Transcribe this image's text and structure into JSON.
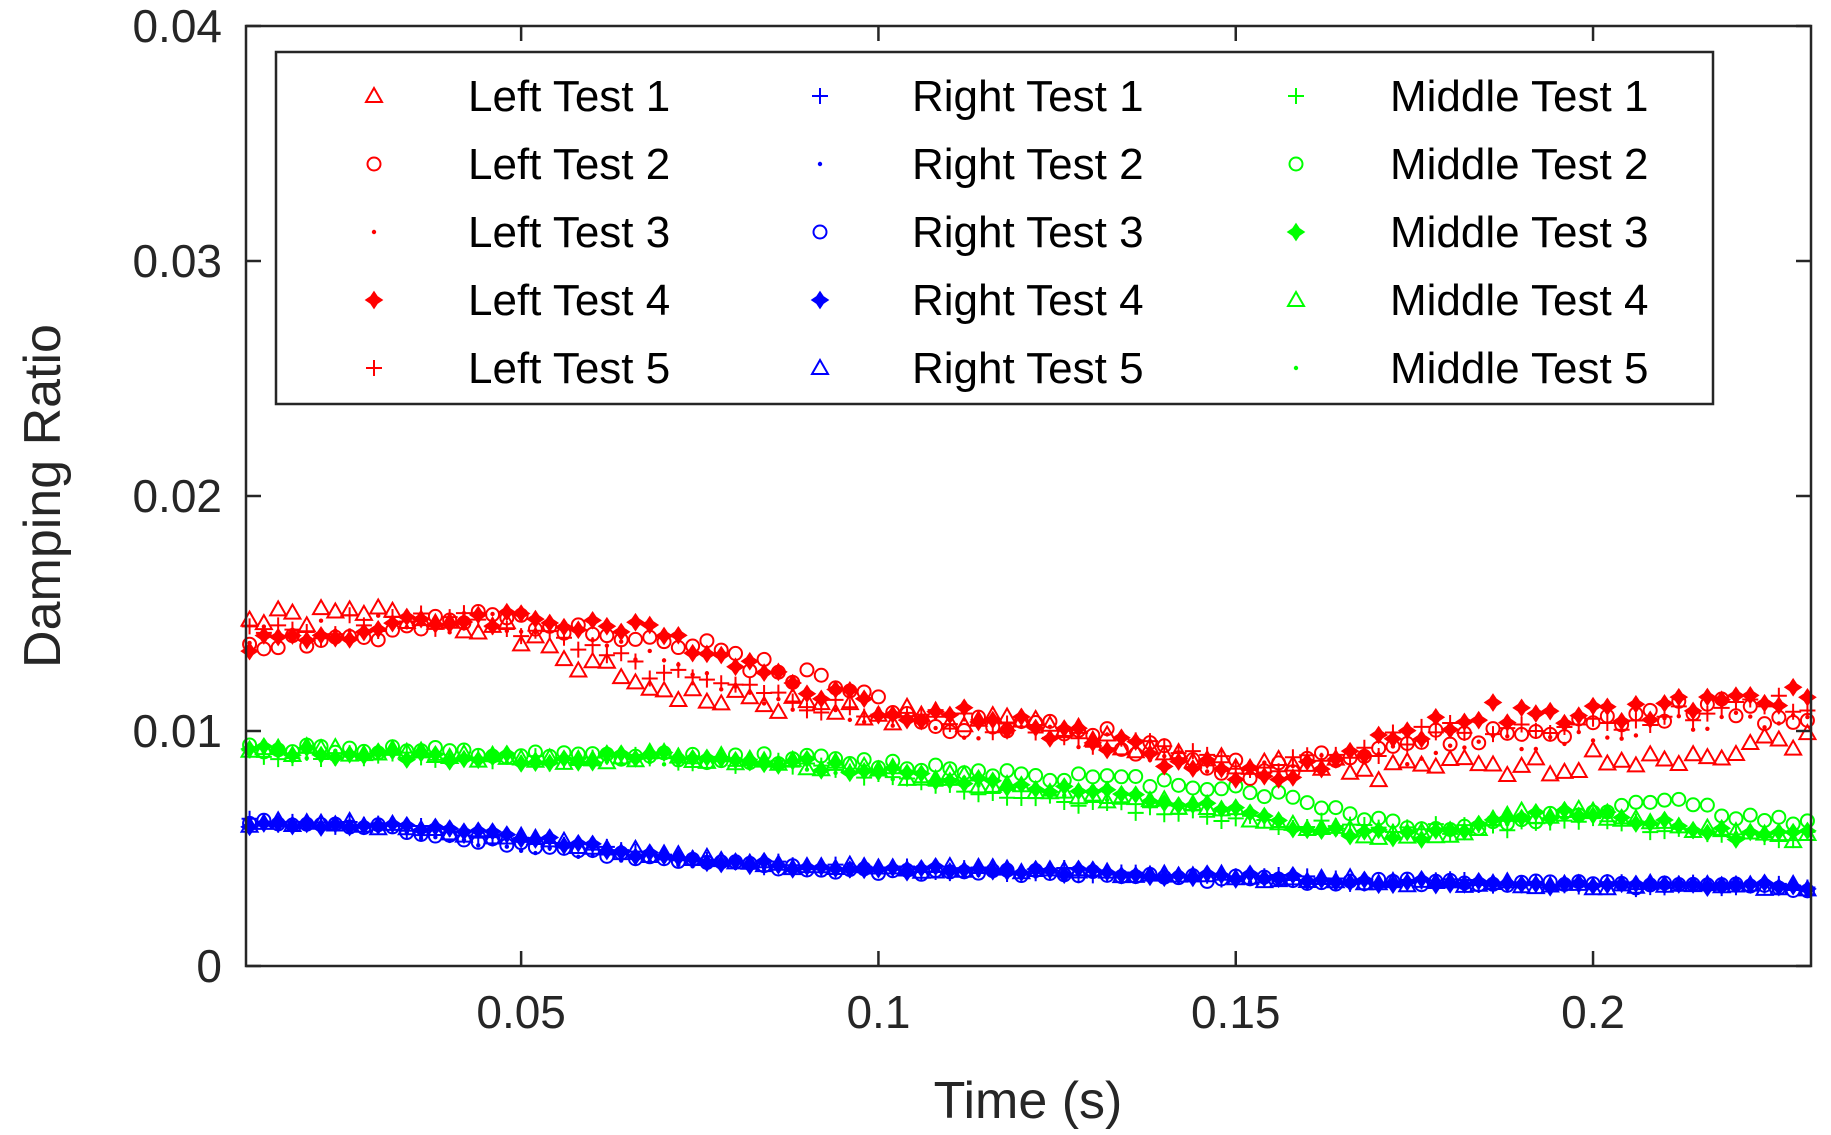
{
  "chart_data": {
    "type": "scatter",
    "title": "",
    "xlabel": "Time (s)",
    "ylabel": "Damping Ratio",
    "xlim": [
      0.0115,
      0.2305
    ],
    "ylim": [
      0,
      0.04
    ],
    "xticks": [
      0.05,
      0.1,
      0.15,
      0.2
    ],
    "xtick_labels": [
      "0.05",
      "0.1",
      "0.15",
      "0.2"
    ],
    "yticks": [
      0,
      0.01,
      0.02,
      0.03,
      0.04
    ],
    "ytick_labels": [
      "0",
      "0.01",
      "0.02",
      "0.03",
      "0.04"
    ],
    "grid": false,
    "legend_position": "top",
    "x_start": 0.012,
    "x_end": 0.23,
    "x_step": 0.002,
    "series": [
      {
        "name": "Left Test 1",
        "color": "#ff0000",
        "marker": "triangle",
        "shape": [
          [
            0.012,
            0.0147
          ],
          [
            0.03,
            0.015
          ],
          [
            0.045,
            0.0146
          ],
          [
            0.055,
            0.0132
          ],
          [
            0.065,
            0.0122
          ],
          [
            0.075,
            0.0114
          ],
          [
            0.085,
            0.0112
          ],
          [
            0.1,
            0.0108
          ],
          [
            0.12,
            0.0103
          ],
          [
            0.14,
            0.0092
          ],
          [
            0.15,
            0.0083
          ],
          [
            0.16,
            0.0086
          ],
          [
            0.17,
            0.0082
          ],
          [
            0.18,
            0.0085
          ],
          [
            0.19,
            0.0083
          ],
          [
            0.2,
            0.0088
          ],
          [
            0.21,
            0.009
          ],
          [
            0.22,
            0.0092
          ],
          [
            0.23,
            0.0098
          ]
        ],
        "seed": 1
      },
      {
        "name": "Left Test 2",
        "color": "#ff0000",
        "marker": "circle",
        "shape": [
          [
            0.012,
            0.0138
          ],
          [
            0.03,
            0.014
          ],
          [
            0.045,
            0.0148
          ],
          [
            0.06,
            0.0145
          ],
          [
            0.075,
            0.0135
          ],
          [
            0.085,
            0.0128
          ],
          [
            0.095,
            0.0118
          ],
          [
            0.11,
            0.0104
          ],
          [
            0.13,
            0.01
          ],
          [
            0.145,
            0.0085
          ],
          [
            0.155,
            0.0084
          ],
          [
            0.165,
            0.0092
          ],
          [
            0.175,
            0.0095
          ],
          [
            0.185,
            0.0098
          ],
          [
            0.195,
            0.01
          ],
          [
            0.21,
            0.0108
          ],
          [
            0.22,
            0.011
          ],
          [
            0.23,
            0.0104
          ]
        ],
        "seed": 2
      },
      {
        "name": "Left Test 3",
        "color": "#ff0000",
        "marker": "point",
        "shape": [
          [
            0.012,
            0.014
          ],
          [
            0.03,
            0.0145
          ],
          [
            0.045,
            0.0147
          ],
          [
            0.06,
            0.014
          ],
          [
            0.075,
            0.0125
          ],
          [
            0.09,
            0.011
          ],
          [
            0.11,
            0.0102
          ],
          [
            0.13,
            0.0096
          ],
          [
            0.145,
            0.0086
          ],
          [
            0.155,
            0.0082
          ],
          [
            0.165,
            0.0088
          ],
          [
            0.175,
            0.009
          ],
          [
            0.185,
            0.0094
          ],
          [
            0.2,
            0.0098
          ],
          [
            0.21,
            0.0102
          ],
          [
            0.22,
            0.0104
          ],
          [
            0.23,
            0.0106
          ]
        ],
        "seed": 3
      },
      {
        "name": "Left Test 4",
        "color": "#ff0000",
        "marker": "star",
        "shape": [
          [
            0.012,
            0.0138
          ],
          [
            0.03,
            0.0143
          ],
          [
            0.045,
            0.0149
          ],
          [
            0.06,
            0.0146
          ],
          [
            0.075,
            0.0137
          ],
          [
            0.085,
            0.0125
          ],
          [
            0.1,
            0.011
          ],
          [
            0.115,
            0.0105
          ],
          [
            0.13,
            0.0098
          ],
          [
            0.145,
            0.0084
          ],
          [
            0.155,
            0.008
          ],
          [
            0.165,
            0.009
          ],
          [
            0.175,
            0.01
          ],
          [
            0.185,
            0.0108
          ],
          [
            0.195,
            0.0105
          ],
          [
            0.205,
            0.0108
          ],
          [
            0.215,
            0.0112
          ],
          [
            0.23,
            0.0115
          ]
        ],
        "seed": 4
      },
      {
        "name": "Left Test 5",
        "color": "#ff0000",
        "marker": "plus",
        "shape": [
          [
            0.012,
            0.0141
          ],
          [
            0.03,
            0.0146
          ],
          [
            0.045,
            0.0148
          ],
          [
            0.055,
            0.0138
          ],
          [
            0.065,
            0.0128
          ],
          [
            0.075,
            0.012
          ],
          [
            0.085,
            0.0114
          ],
          [
            0.1,
            0.0108
          ],
          [
            0.12,
            0.0102
          ],
          [
            0.14,
            0.0092
          ],
          [
            0.15,
            0.0085
          ],
          [
            0.16,
            0.0087
          ],
          [
            0.17,
            0.0093
          ],
          [
            0.18,
            0.0103
          ],
          [
            0.19,
            0.0102
          ],
          [
            0.2,
            0.0104
          ],
          [
            0.21,
            0.0106
          ],
          [
            0.22,
            0.0112
          ],
          [
            0.23,
            0.011
          ]
        ],
        "seed": 5
      },
      {
        "name": "Right Test 1",
        "color": "#0000ff",
        "marker": "plus",
        "shape": [
          [
            0.012,
            0.0062
          ],
          [
            0.03,
            0.006
          ],
          [
            0.05,
            0.0054
          ],
          [
            0.07,
            0.0047
          ],
          [
            0.09,
            0.0042
          ],
          [
            0.11,
            0.0041
          ],
          [
            0.13,
            0.004
          ],
          [
            0.15,
            0.0038
          ],
          [
            0.17,
            0.0036
          ],
          [
            0.19,
            0.0035
          ],
          [
            0.21,
            0.0034
          ],
          [
            0.23,
            0.0034
          ]
        ],
        "seed": 6
      },
      {
        "name": "Right Test 2",
        "color": "#0000ff",
        "marker": "point",
        "shape": [
          [
            0.012,
            0.006
          ],
          [
            0.03,
            0.0058
          ],
          [
            0.05,
            0.005
          ],
          [
            0.07,
            0.0044
          ],
          [
            0.09,
            0.0041
          ],
          [
            0.11,
            0.004
          ],
          [
            0.13,
            0.0039
          ],
          [
            0.15,
            0.0037
          ],
          [
            0.17,
            0.0036
          ],
          [
            0.19,
            0.0034
          ],
          [
            0.21,
            0.0033
          ],
          [
            0.23,
            0.0033
          ]
        ],
        "seed": 7
      },
      {
        "name": "Right Test 3",
        "color": "#0000ff",
        "marker": "circle",
        "shape": [
          [
            0.012,
            0.0061
          ],
          [
            0.03,
            0.0059
          ],
          [
            0.05,
            0.0052
          ],
          [
            0.07,
            0.0045
          ],
          [
            0.09,
            0.0041
          ],
          [
            0.11,
            0.004
          ],
          [
            0.13,
            0.0039
          ],
          [
            0.15,
            0.0037
          ],
          [
            0.17,
            0.0036
          ],
          [
            0.19,
            0.0035
          ],
          [
            0.21,
            0.0034
          ],
          [
            0.23,
            0.0033
          ]
        ],
        "seed": 8
      },
      {
        "name": "Right Test 4",
        "color": "#0000ff",
        "marker": "star",
        "shape": [
          [
            0.012,
            0.006
          ],
          [
            0.03,
            0.006
          ],
          [
            0.05,
            0.0055
          ],
          [
            0.07,
            0.0046
          ],
          [
            0.09,
            0.0042
          ],
          [
            0.11,
            0.0041
          ],
          [
            0.13,
            0.004
          ],
          [
            0.15,
            0.0038
          ],
          [
            0.17,
            0.0036
          ],
          [
            0.19,
            0.0035
          ],
          [
            0.21,
            0.0034
          ],
          [
            0.23,
            0.0034
          ]
        ],
        "seed": 9
      },
      {
        "name": "Right Test 5",
        "color": "#0000ff",
        "marker": "triangle",
        "shape": [
          [
            0.012,
            0.0061
          ],
          [
            0.03,
            0.006
          ],
          [
            0.05,
            0.0055
          ],
          [
            0.07,
            0.0047
          ],
          [
            0.09,
            0.0042
          ],
          [
            0.11,
            0.0041
          ],
          [
            0.13,
            0.004
          ],
          [
            0.15,
            0.0038
          ],
          [
            0.17,
            0.0036
          ],
          [
            0.19,
            0.0035
          ],
          [
            0.21,
            0.0034
          ],
          [
            0.23,
            0.0034
          ]
        ],
        "seed": 10
      },
      {
        "name": "Middle Test 1",
        "color": "#00ff00",
        "marker": "plus",
        "shape": [
          [
            0.012,
            0.009
          ],
          [
            0.03,
            0.0089
          ],
          [
            0.05,
            0.0088
          ],
          [
            0.07,
            0.0089
          ],
          [
            0.09,
            0.0085
          ],
          [
            0.1,
            0.008
          ],
          [
            0.12,
            0.0072
          ],
          [
            0.14,
            0.0066
          ],
          [
            0.16,
            0.006
          ],
          [
            0.18,
            0.0058
          ],
          [
            0.2,
            0.0062
          ],
          [
            0.21,
            0.0058
          ],
          [
            0.23,
            0.0055
          ]
        ],
        "seed": 11
      },
      {
        "name": "Middle Test 2",
        "color": "#00ff00",
        "marker": "circle",
        "shape": [
          [
            0.012,
            0.0093
          ],
          [
            0.03,
            0.0092
          ],
          [
            0.05,
            0.0089
          ],
          [
            0.07,
            0.0089
          ],
          [
            0.09,
            0.0088
          ],
          [
            0.11,
            0.0084
          ],
          [
            0.13,
            0.008
          ],
          [
            0.15,
            0.0076
          ],
          [
            0.16,
            0.007
          ],
          [
            0.17,
            0.0062
          ],
          [
            0.18,
            0.0058
          ],
          [
            0.19,
            0.0062
          ],
          [
            0.2,
            0.0066
          ],
          [
            0.21,
            0.0072
          ],
          [
            0.22,
            0.0064
          ],
          [
            0.23,
            0.006
          ]
        ],
        "seed": 12
      },
      {
        "name": "Middle Test 3",
        "color": "#00ff00",
        "marker": "star",
        "shape": [
          [
            0.012,
            0.0092
          ],
          [
            0.03,
            0.009
          ],
          [
            0.05,
            0.0088
          ],
          [
            0.07,
            0.0089
          ],
          [
            0.09,
            0.0086
          ],
          [
            0.11,
            0.008
          ],
          [
            0.13,
            0.0074
          ],
          [
            0.15,
            0.0066
          ],
          [
            0.16,
            0.0058
          ],
          [
            0.17,
            0.0056
          ],
          [
            0.18,
            0.0056
          ],
          [
            0.19,
            0.0064
          ],
          [
            0.2,
            0.0066
          ],
          [
            0.21,
            0.006
          ],
          [
            0.22,
            0.0056
          ],
          [
            0.23,
            0.0056
          ]
        ],
        "seed": 13
      },
      {
        "name": "Middle Test 4",
        "color": "#00ff00",
        "marker": "triangle",
        "shape": [
          [
            0.012,
            0.0092
          ],
          [
            0.03,
            0.0091
          ],
          [
            0.05,
            0.0088
          ],
          [
            0.07,
            0.0089
          ],
          [
            0.09,
            0.0086
          ],
          [
            0.11,
            0.008
          ],
          [
            0.13,
            0.0073
          ],
          [
            0.15,
            0.0065
          ],
          [
            0.16,
            0.0058
          ],
          [
            0.17,
            0.0056
          ],
          [
            0.18,
            0.0056
          ],
          [
            0.19,
            0.0064
          ],
          [
            0.2,
            0.0065
          ],
          [
            0.21,
            0.006
          ],
          [
            0.22,
            0.0056
          ],
          [
            0.23,
            0.0055
          ]
        ],
        "seed": 14
      },
      {
        "name": "Middle Test 5",
        "color": "#00ff00",
        "marker": "point",
        "shape": [
          [
            0.012,
            0.0091
          ],
          [
            0.03,
            0.009
          ],
          [
            0.05,
            0.0088
          ],
          [
            0.07,
            0.0088
          ],
          [
            0.09,
            0.0085
          ],
          [
            0.11,
            0.0079
          ],
          [
            0.13,
            0.0073
          ],
          [
            0.15,
            0.0066
          ],
          [
            0.16,
            0.0059
          ],
          [
            0.17,
            0.0056
          ],
          [
            0.18,
            0.0056
          ],
          [
            0.19,
            0.0063
          ],
          [
            0.2,
            0.0065
          ],
          [
            0.21,
            0.006
          ],
          [
            0.22,
            0.0056
          ],
          [
            0.23,
            0.0055
          ]
        ],
        "seed": 15
      }
    ]
  }
}
